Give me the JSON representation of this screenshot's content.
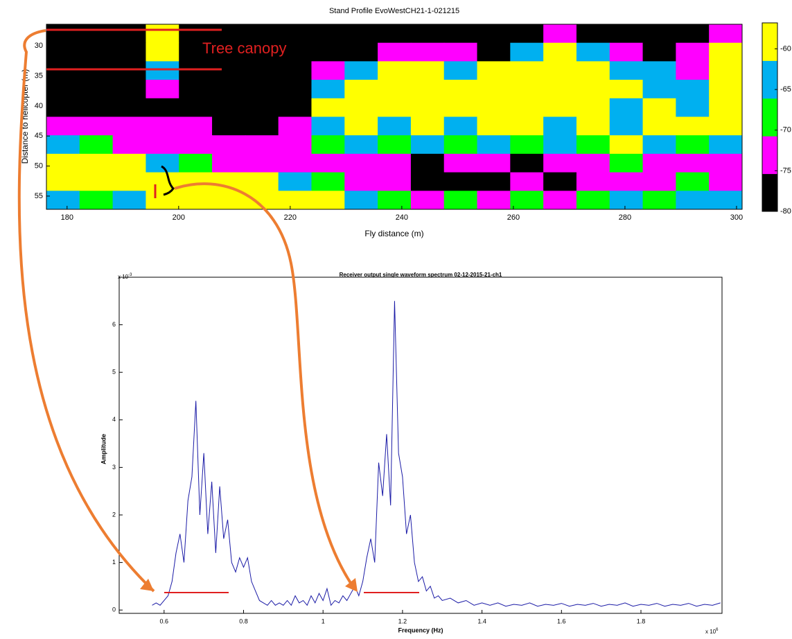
{
  "chart_data": [
    {
      "type": "heatmap",
      "title": "Stand Profile EvoWestCH21-1-021215",
      "x_label": "Fly distance (m)",
      "y_label": "Distance to helicopter (m)",
      "annotation": "Tree canopy",
      "xlim": [
        176.3,
        301
      ],
      "xticks": [
        180,
        200,
        220,
        240,
        260,
        280,
        300
      ],
      "ylim": [
        57.2,
        26.4
      ],
      "yticks": [
        30,
        35,
        40,
        45,
        50,
        55
      ],
      "zlim": [
        -80,
        -56.8
      ],
      "zticks": [
        -60,
        -65,
        -70,
        -75,
        -80
      ],
      "colors": [
        "#000000",
        "#ff00ff",
        "#00ff00",
        "#00b0f0",
        "#ffff00"
      ],
      "z": [
        [
          -78,
          -78,
          -78,
          -59,
          -78,
          -78,
          -78,
          -78,
          -78,
          -78,
          -78,
          -78,
          -78,
          -78,
          -78,
          -73,
          -78,
          -78,
          -78,
          -78,
          -73
        ],
        [
          -78,
          -78,
          -78,
          -59,
          -78,
          -78,
          -78,
          -78,
          -78,
          -78,
          -73,
          -73,
          -73,
          -78,
          -64,
          -59,
          -64,
          -73,
          -78,
          -73,
          -59
        ],
        [
          -78,
          -78,
          -78,
          -64,
          -78,
          -78,
          -78,
          -78,
          -73,
          -64,
          -59,
          -59,
          -64,
          -59,
          -59,
          -59,
          -59,
          -64,
          -64,
          -73,
          -59
        ],
        [
          -78,
          -78,
          -78,
          -73,
          -78,
          -78,
          -78,
          -78,
          -64,
          -59,
          -59,
          -59,
          -59,
          -59,
          -59,
          -59,
          -59,
          -59,
          -64,
          -64,
          -59
        ],
        [
          -78,
          -78,
          -78,
          -78,
          -78,
          -78,
          -78,
          -78,
          -59,
          -59,
          -59,
          -59,
          -59,
          -59,
          -59,
          -59,
          -59,
          -64,
          -59,
          -64,
          -59
        ],
        [
          -73,
          -73,
          -73,
          -73,
          -73,
          -78,
          -78,
          -73,
          -64,
          -59,
          -64,
          -59,
          -64,
          -59,
          -59,
          -64,
          -59,
          -64,
          -59,
          -59,
          -59
        ],
        [
          -64,
          -68,
          -73,
          -73,
          -73,
          -73,
          -73,
          -73,
          -68,
          -64,
          -68,
          -64,
          -68,
          -64,
          -68,
          -64,
          -68,
          -59,
          -64,
          -68,
          -64
        ],
        [
          -59,
          -59,
          -59,
          -64,
          -68,
          -73,
          -73,
          -73,
          -73,
          -73,
          -73,
          -78,
          -73,
          -73,
          -78,
          -73,
          -73,
          -68,
          -73,
          -73,
          -73
        ],
        [
          -59,
          -59,
          -59,
          -59,
          -59,
          -59,
          -59,
          -64,
          -68,
          -73,
          -73,
          -78,
          -78,
          -78,
          -73,
          -78,
          -73,
          -73,
          -73,
          -68,
          -73
        ],
        [
          -64,
          -68,
          -64,
          -59,
          -59,
          -59,
          -59,
          -59,
          -59,
          -64,
          -68,
          -73,
          -68,
          -73,
          -68,
          -73,
          -68,
          -64,
          -68,
          -64,
          -64
        ]
      ]
    },
    {
      "type": "line",
      "title": "Receiver output single waveform spectrum 02-12-2015-21-ch1",
      "x_label": "Frequency (Hz)",
      "y_label": "Amplitude",
      "x_multiplier": {
        "base": "x 10",
        "exponent": "6"
      },
      "y_multiplier": {
        "base": "x 10",
        "exponent": "-3"
      },
      "xlim": [
        0.487,
        2.004
      ],
      "xticks": [
        0.6,
        0.8,
        1,
        1.2,
        1.4,
        1.6,
        1.8
      ],
      "ylim": [
        -0.07,
        7
      ],
      "yticks": [
        0,
        1,
        2,
        3,
        4,
        5,
        6
      ],
      "color": "#1a1aa6",
      "x": [
        0.57,
        0.58,
        0.59,
        0.6,
        0.61,
        0.62,
        0.63,
        0.64,
        0.65,
        0.66,
        0.67,
        0.68,
        0.69,
        0.7,
        0.71,
        0.72,
        0.73,
        0.74,
        0.75,
        0.76,
        0.77,
        0.78,
        0.79,
        0.8,
        0.81,
        0.82,
        0.83,
        0.84,
        0.85,
        0.86,
        0.87,
        0.88,
        0.89,
        0.9,
        0.91,
        0.92,
        0.93,
        0.94,
        0.95,
        0.96,
        0.97,
        0.98,
        0.99,
        1.0,
        1.01,
        1.02,
        1.03,
        1.04,
        1.05,
        1.06,
        1.07,
        1.08,
        1.09,
        1.1,
        1.11,
        1.12,
        1.13,
        1.14,
        1.15,
        1.16,
        1.17,
        1.18,
        1.19,
        1.2,
        1.21,
        1.22,
        1.23,
        1.24,
        1.25,
        1.26,
        1.27,
        1.28,
        1.29,
        1.3,
        1.32,
        1.34,
        1.36,
        1.38,
        1.4,
        1.42,
        1.44,
        1.46,
        1.48,
        1.5,
        1.52,
        1.54,
        1.56,
        1.58,
        1.6,
        1.62,
        1.64,
        1.66,
        1.68,
        1.7,
        1.72,
        1.74,
        1.76,
        1.78,
        1.8,
        1.82,
        1.84,
        1.86,
        1.88,
        1.9,
        1.92,
        1.94,
        1.96,
        1.98,
        2.0
      ],
      "values": [
        0.1,
        0.15,
        0.1,
        0.2,
        0.3,
        0.6,
        1.2,
        1.6,
        1.0,
        2.3,
        2.8,
        4.4,
        2.0,
        3.3,
        1.6,
        2.7,
        1.2,
        2.6,
        1.5,
        1.9,
        1.0,
        0.8,
        1.1,
        0.9,
        1.1,
        0.6,
        0.4,
        0.2,
        0.15,
        0.1,
        0.2,
        0.1,
        0.15,
        0.1,
        0.2,
        0.1,
        0.3,
        0.15,
        0.2,
        0.1,
        0.3,
        0.15,
        0.35,
        0.2,
        0.45,
        0.1,
        0.2,
        0.15,
        0.3,
        0.2,
        0.35,
        0.5,
        0.3,
        0.6,
        1.1,
        1.5,
        1.0,
        3.1,
        2.4,
        3.7,
        2.2,
        6.5,
        3.3,
        2.8,
        1.6,
        2.0,
        1.0,
        0.6,
        0.7,
        0.4,
        0.5,
        0.25,
        0.3,
        0.2,
        0.25,
        0.15,
        0.2,
        0.1,
        0.15,
        0.1,
        0.15,
        0.08,
        0.12,
        0.1,
        0.15,
        0.08,
        0.12,
        0.1,
        0.14,
        0.08,
        0.12,
        0.1,
        0.14,
        0.08,
        0.12,
        0.1,
        0.15,
        0.08,
        0.12,
        0.1,
        0.14,
        0.08,
        0.12,
        0.1,
        0.14,
        0.08,
        0.12,
        0.1,
        0.15
      ]
    }
  ]
}
